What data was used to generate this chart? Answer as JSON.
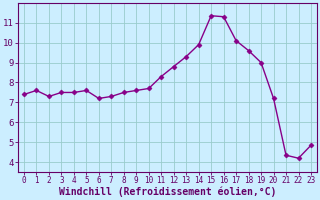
{
  "x": [
    0,
    1,
    2,
    3,
    4,
    5,
    6,
    7,
    8,
    9,
    10,
    11,
    12,
    13,
    14,
    15,
    16,
    17,
    18,
    19,
    20,
    21,
    22,
    23
  ],
  "y": [
    7.4,
    7.6,
    7.3,
    7.5,
    7.5,
    7.6,
    7.2,
    7.3,
    7.5,
    7.6,
    7.7,
    8.3,
    8.8,
    9.3,
    9.9,
    11.35,
    11.3,
    10.1,
    9.6,
    9.0,
    7.2,
    4.35,
    4.2,
    4.85
  ],
  "xlabel": "Windchill (Refroidissement éolien,°C)",
  "line_color": "#880088",
  "marker": "D",
  "bg_color": "#cceeff",
  "grid_color": "#99cccc",
  "axis_color": "#660066",
  "xlim": [
    -0.5,
    23.5
  ],
  "ylim": [
    3.5,
    12.0
  ],
  "yticks": [
    4,
    5,
    6,
    7,
    8,
    9,
    10,
    11
  ],
  "xticks": [
    0,
    1,
    2,
    3,
    4,
    5,
    6,
    7,
    8,
    9,
    10,
    11,
    12,
    13,
    14,
    15,
    16,
    17,
    18,
    19,
    20,
    21,
    22,
    23
  ],
  "tick_fontsize": 6.5,
  "xlabel_fontsize": 7.0,
  "linewidth": 1.0,
  "markersize": 2.5
}
